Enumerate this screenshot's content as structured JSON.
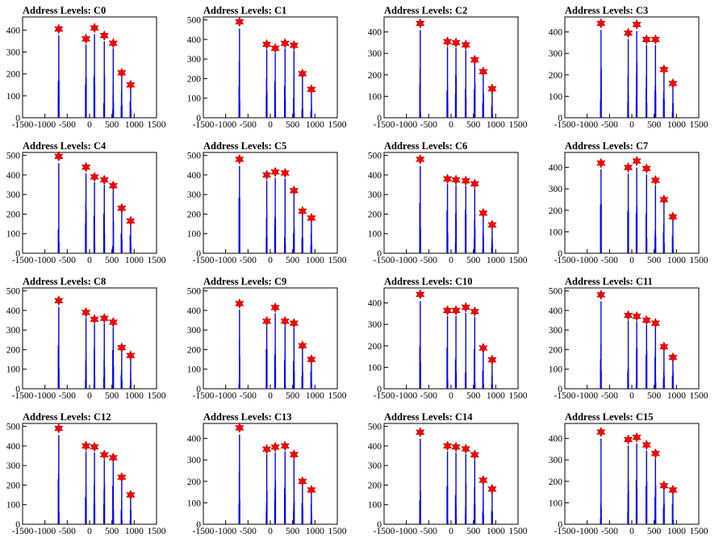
{
  "chart_data": [
    {
      "type": "bar",
      "title": "Address Levels: C0",
      "xlim": [
        -1500,
        1500
      ],
      "ylim": [
        0,
        460
      ],
      "yticks": [
        100,
        200,
        300,
        400
      ],
      "xticks": [
        -1500,
        -1000,
        -500,
        0,
        500,
        1000,
        1500
      ],
      "peaks_x": [
        -690,
        -80,
        110,
        330,
        530,
        720,
        920
      ],
      "peaks_y": [
        405,
        360,
        410,
        375,
        340,
        205,
        150
      ]
    },
    {
      "type": "bar",
      "title": "Address Levels: C1",
      "xlim": [
        -1500,
        1500
      ],
      "ylim": [
        0,
        515
      ],
      "yticks": [
        100,
        200,
        300,
        400,
        500
      ],
      "xticks": [
        -1500,
        -1000,
        -500,
        0,
        500,
        1000,
        1500
      ],
      "peaks_x": [
        -690,
        -80,
        110,
        330,
        530,
        720,
        920
      ],
      "peaks_y": [
        490,
        375,
        355,
        380,
        370,
        225,
        145
      ]
    },
    {
      "type": "bar",
      "title": "Address Levels: C2",
      "xlim": [
        -1500,
        1500
      ],
      "ylim": [
        0,
        470
      ],
      "yticks": [
        100,
        200,
        300,
        400
      ],
      "xticks": [
        -1500,
        -1000,
        -500,
        0,
        500,
        1000,
        1500
      ],
      "peaks_x": [
        -690,
        -80,
        110,
        330,
        530,
        720,
        920
      ],
      "peaks_y": [
        440,
        355,
        350,
        340,
        270,
        215,
        135
      ]
    },
    {
      "type": "bar",
      "title": "Address Levels: C3",
      "xlim": [
        -1500,
        1500
      ],
      "ylim": [
        0,
        470
      ],
      "yticks": [
        100,
        200,
        300,
        400
      ],
      "xticks": [
        -1500,
        -1000,
        -500,
        0,
        500,
        1000,
        1500
      ],
      "peaks_x": [
        -690,
        -80,
        110,
        330,
        530,
        720,
        920
      ],
      "peaks_y": [
        440,
        395,
        435,
        365,
        365,
        225,
        160
      ]
    },
    {
      "type": "bar",
      "title": "Address Levels: C4",
      "xlim": [
        -1500,
        1500
      ],
      "ylim": [
        0,
        515
      ],
      "yticks": [
        100,
        200,
        300,
        400,
        500
      ],
      "xticks": [
        -1500,
        -1000,
        -500,
        0,
        500,
        1000,
        1500
      ],
      "peaks_x": [
        -690,
        -80,
        110,
        330,
        530,
        720,
        920
      ],
      "peaks_y": [
        495,
        440,
        390,
        375,
        345,
        230,
        165
      ]
    },
    {
      "type": "bar",
      "title": "Address Levels: C5",
      "xlim": [
        -1500,
        1500
      ],
      "ylim": [
        0,
        515
      ],
      "yticks": [
        100,
        200,
        300,
        400,
        500
      ],
      "xticks": [
        -1500,
        -1000,
        -500,
        0,
        500,
        1000,
        1500
      ],
      "peaks_x": [
        -690,
        -80,
        110,
        330,
        530,
        720,
        920
      ],
      "peaks_y": [
        480,
        400,
        415,
        410,
        320,
        215,
        180
      ]
    },
    {
      "type": "bar",
      "title": "Address Levels: C6",
      "xlim": [
        -1500,
        1500
      ],
      "ylim": [
        0,
        515
      ],
      "yticks": [
        100,
        200,
        300,
        400,
        500
      ],
      "xticks": [
        -1500,
        -1000,
        -500,
        0,
        500,
        1000,
        1500
      ],
      "peaks_x": [
        -690,
        -80,
        110,
        330,
        530,
        720,
        920
      ],
      "peaks_y": [
        480,
        380,
        375,
        370,
        355,
        205,
        145
      ]
    },
    {
      "type": "bar",
      "title": "Address Levels: C7",
      "xlim": [
        -1500,
        1500
      ],
      "ylim": [
        0,
        470
      ],
      "yticks": [
        100,
        200,
        300,
        400
      ],
      "xticks": [
        -1500,
        -1000,
        -500,
        0,
        500,
        1000,
        1500
      ],
      "peaks_x": [
        -690,
        -80,
        110,
        330,
        530,
        720,
        920
      ],
      "peaks_y": [
        420,
        400,
        430,
        395,
        340,
        250,
        170
      ]
    },
    {
      "type": "bar",
      "title": "Address Levels: C8",
      "xlim": [
        -1500,
        1500
      ],
      "ylim": [
        0,
        515
      ],
      "yticks": [
        100,
        200,
        300,
        400,
        500
      ],
      "xticks": [
        -1500,
        -1000,
        -500,
        0,
        500,
        1000,
        1500
      ],
      "peaks_x": [
        -690,
        -80,
        110,
        330,
        530,
        720,
        920
      ],
      "peaks_y": [
        450,
        390,
        355,
        360,
        340,
        210,
        170
      ]
    },
    {
      "type": "bar",
      "title": "Address Levels: C9",
      "xlim": [
        -1500,
        1500
      ],
      "ylim": [
        0,
        515
      ],
      "yticks": [
        100,
        200,
        300,
        400,
        500
      ],
      "xticks": [
        -1500,
        -1000,
        -500,
        0,
        500,
        1000,
        1500
      ],
      "peaks_x": [
        -690,
        -80,
        110,
        330,
        530,
        720,
        920
      ],
      "peaks_y": [
        435,
        345,
        415,
        345,
        335,
        220,
        150
      ]
    },
    {
      "type": "bar",
      "title": "Address Levels: C10",
      "xlim": [
        -1500,
        1500
      ],
      "ylim": [
        0,
        470
      ],
      "yticks": [
        100,
        200,
        300,
        400
      ],
      "xticks": [
        -1500,
        -1000,
        -500,
        0,
        500,
        1000,
        1500
      ],
      "peaks_x": [
        -690,
        -80,
        110,
        330,
        530,
        720,
        920
      ],
      "peaks_y": [
        440,
        365,
        365,
        380,
        360,
        190,
        135
      ]
    },
    {
      "type": "bar",
      "title": "Address Levels: C11",
      "xlim": [
        -1500,
        1500
      ],
      "ylim": [
        0,
        515
      ],
      "yticks": [
        100,
        200,
        300,
        400,
        500
      ],
      "xticks": [
        -1500,
        -1000,
        -500,
        0,
        500,
        1000,
        1500
      ],
      "peaks_x": [
        -690,
        -80,
        110,
        330,
        530,
        720,
        920
      ],
      "peaks_y": [
        480,
        375,
        370,
        350,
        335,
        215,
        160
      ]
    },
    {
      "type": "bar",
      "title": "Address Levels: C12",
      "xlim": [
        -1500,
        1500
      ],
      "ylim": [
        0,
        515
      ],
      "yticks": [
        100,
        200,
        300,
        400,
        500
      ],
      "xticks": [
        -1500,
        -1000,
        -500,
        0,
        500,
        1000,
        1500
      ],
      "peaks_x": [
        -690,
        -80,
        110,
        330,
        530,
        720,
        920
      ],
      "peaks_y": [
        490,
        400,
        395,
        355,
        340,
        240,
        150
      ]
    },
    {
      "type": "bar",
      "title": "Address Levels: C13",
      "xlim": [
        -1500,
        1500
      ],
      "ylim": [
        0,
        470
      ],
      "yticks": [
        100,
        200,
        300,
        400
      ],
      "xticks": [
        -1500,
        -1000,
        -500,
        0,
        500,
        1000,
        1500
      ],
      "peaks_x": [
        -690,
        -80,
        110,
        330,
        530,
        720,
        920
      ],
      "peaks_y": [
        450,
        350,
        360,
        365,
        325,
        200,
        160
      ]
    },
    {
      "type": "bar",
      "title": "Address Levels: C14",
      "xlim": [
        -1500,
        1500
      ],
      "ylim": [
        0,
        515
      ],
      "yticks": [
        100,
        200,
        300,
        400,
        500
      ],
      "xticks": [
        -1500,
        -1000,
        -500,
        0,
        500,
        1000,
        1500
      ],
      "peaks_x": [
        -690,
        -80,
        110,
        330,
        530,
        720,
        920
      ],
      "peaks_y": [
        470,
        400,
        395,
        385,
        355,
        225,
        180
      ]
    },
    {
      "type": "bar",
      "title": "Address Levels: C15",
      "xlim": [
        -1500,
        1500
      ],
      "ylim": [
        0,
        470
      ],
      "yticks": [
        100,
        200,
        300,
        400
      ],
      "xticks": [
        -1500,
        -1000,
        -500,
        0,
        500,
        1000,
        1500
      ],
      "peaks_x": [
        -690,
        -80,
        110,
        330,
        530,
        720,
        920
      ],
      "peaks_y": [
        430,
        395,
        405,
        370,
        330,
        180,
        160
      ]
    }
  ],
  "colors": {
    "bar": "#0000ff",
    "marker": "#ff0000",
    "marker_stroke": "#b00000",
    "axis": "#000000"
  }
}
